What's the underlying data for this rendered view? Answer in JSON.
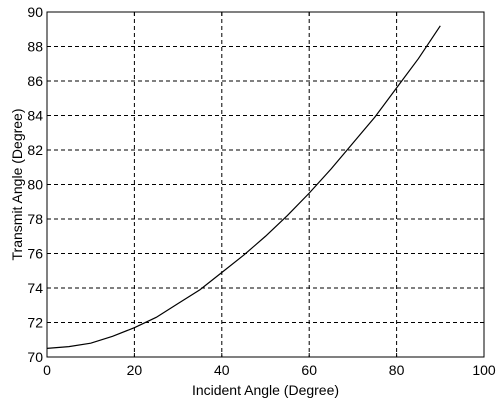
{
  "chart_data": {
    "type": "line",
    "title": "",
    "xlabel": "Incident Angle (Degree)",
    "ylabel": "Transmit Angle (Degree)",
    "xlim": [
      0,
      100
    ],
    "ylim": [
      70,
      90
    ],
    "xticks": [
      0,
      20,
      40,
      60,
      80,
      100
    ],
    "yticks": [
      70,
      72,
      74,
      76,
      78,
      80,
      82,
      84,
      86,
      88,
      90
    ],
    "grid": true,
    "series": [
      {
        "x": [
          0,
          5,
          10,
          15,
          20,
          25,
          30,
          35,
          40,
          45,
          50,
          55,
          60,
          65,
          70,
          75,
          80,
          85,
          90
        ],
        "y": [
          70.5,
          70.6,
          70.8,
          71.2,
          71.7,
          72.3,
          73.1,
          73.9,
          74.9,
          75.9,
          77.0,
          78.2,
          79.5,
          80.9,
          82.4,
          83.9,
          85.6,
          87.3,
          89.2
        ]
      }
    ]
  }
}
